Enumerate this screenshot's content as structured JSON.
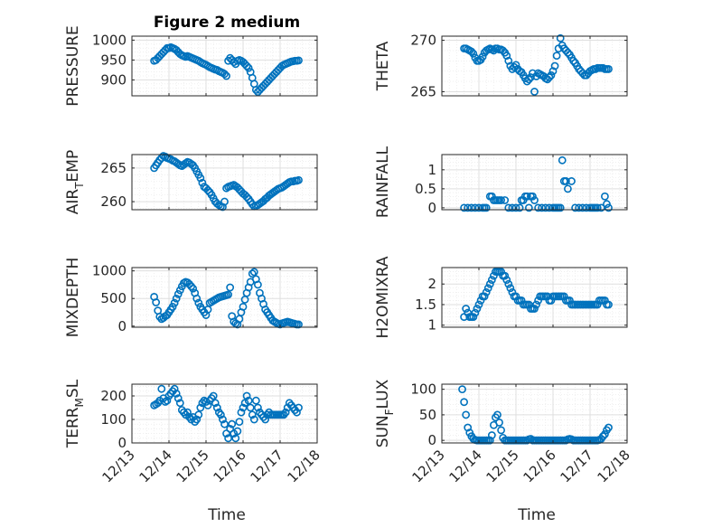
{
  "figure": {
    "title": "Figure 2 medium",
    "xlabel": "Time",
    "marker_color": "#0072bd"
  },
  "x_ticks": [
    "12/13",
    "12/14",
    "12/15",
    "12/16",
    "12/17",
    "12/18"
  ],
  "chart_data": [
    {
      "type": "scatter",
      "ylabel_parts": [
        "PRESSURE"
      ],
      "ylim": [
        860,
        1010
      ],
      "yticks": [
        900,
        950,
        1000
      ],
      "grid": true,
      "x": [
        13.6,
        13.65,
        13.7,
        13.75,
        13.8,
        13.85,
        13.9,
        13.95,
        14.0,
        14.05,
        14.1,
        14.15,
        14.2,
        14.25,
        14.3,
        14.35,
        14.4,
        14.45,
        14.5,
        14.55,
        14.6,
        14.65,
        14.7,
        14.75,
        14.8,
        14.85,
        14.9,
        14.95,
        15.0,
        15.05,
        15.1,
        15.15,
        15.2,
        15.25,
        15.3,
        15.35,
        15.4,
        15.45,
        15.5,
        15.55,
        15.6,
        15.65,
        15.7,
        15.75,
        15.8,
        15.85,
        15.9,
        15.95,
        16.0,
        16.05,
        16.1,
        16.15,
        16.2,
        16.25,
        16.3,
        16.35,
        16.4,
        16.45,
        16.5,
        16.55,
        16.6,
        16.65,
        16.7,
        16.75,
        16.8,
        16.85,
        16.9,
        16.95,
        17.0,
        17.05,
        17.1,
        17.15,
        17.2,
        17.25,
        17.3,
        17.35,
        17.4,
        17.45,
        17.5
      ],
      "y": [
        948,
        950,
        955,
        960,
        965,
        970,
        975,
        980,
        980,
        982,
        980,
        978,
        975,
        970,
        965,
        962,
        960,
        958,
        960,
        958,
        956,
        954,
        952,
        950,
        948,
        945,
        942,
        940,
        938,
        935,
        932,
        930,
        928,
        926,
        925,
        922,
        920,
        918,
        915,
        910,
        948,
        955,
        950,
        945,
        940,
        948,
        950,
        948,
        945,
        940,
        935,
        930,
        920,
        905,
        890,
        875,
        870,
        875,
        880,
        885,
        890,
        895,
        900,
        905,
        910,
        915,
        920,
        925,
        930,
        935,
        938,
        940,
        942,
        944,
        946,
        947,
        948,
        948,
        949
      ]
    },
    {
      "type": "scatter",
      "ylabel_parts": [
        "THETA"
      ],
      "ylim": [
        264.6,
        270.4
      ],
      "yticks": [
        265,
        270
      ],
      "grid": true,
      "x": [
        13.6,
        13.65,
        13.7,
        13.75,
        13.8,
        13.85,
        13.9,
        13.95,
        14.0,
        14.05,
        14.1,
        14.15,
        14.2,
        14.25,
        14.3,
        14.35,
        14.4,
        14.45,
        14.5,
        14.55,
        14.6,
        14.65,
        14.7,
        14.75,
        14.8,
        14.85,
        14.9,
        14.95,
        15.0,
        15.05,
        15.1,
        15.15,
        15.2,
        15.25,
        15.3,
        15.35,
        15.4,
        15.45,
        15.5,
        15.55,
        15.6,
        15.65,
        15.7,
        15.75,
        15.8,
        15.85,
        15.9,
        15.95,
        16.0,
        16.05,
        16.1,
        16.15,
        16.2,
        16.25,
        16.3,
        16.35,
        16.4,
        16.45,
        16.5,
        16.55,
        16.6,
        16.65,
        16.7,
        16.75,
        16.8,
        16.85,
        16.9,
        16.95,
        17.0,
        17.05,
        17.1,
        17.15,
        17.2,
        17.25,
        17.3,
        17.35,
        17.4,
        17.45,
        17.5
      ],
      "y": [
        269.2,
        269.2,
        269.1,
        269.0,
        268.9,
        268.7,
        268.3,
        268.0,
        268.0,
        268.1,
        268.4,
        268.8,
        269.0,
        269.1,
        269.2,
        269.1,
        269.0,
        269.2,
        269.2,
        269.1,
        269.1,
        269.0,
        268.8,
        268.5,
        268.0,
        267.5,
        267.2,
        267.4,
        267.6,
        267.2,
        267.0,
        266.9,
        266.6,
        266.3,
        266.0,
        266.2,
        266.4,
        266.8,
        265.0,
        266.5,
        266.8,
        266.7,
        266.6,
        266.5,
        266.3,
        266.2,
        266.4,
        266.6,
        267.0,
        267.5,
        268.5,
        269.2,
        270.2,
        269.5,
        269.2,
        269.0,
        268.8,
        268.6,
        268.3,
        268.0,
        267.8,
        267.5,
        267.2,
        267.0,
        266.8,
        266.6,
        266.6,
        266.8,
        267.0,
        267.1,
        267.2,
        267.2,
        267.3,
        267.3,
        267.3,
        267.3,
        267.2,
        267.2,
        267.2
      ]
    },
    {
      "type": "scatter",
      "ylabel_parts": [
        "AIR",
        "T",
        "EMP"
      ],
      "ylim": [
        258.8,
        267
      ],
      "yticks": [
        260,
        265
      ],
      "grid": true,
      "x": [
        13.6,
        13.65,
        13.7,
        13.75,
        13.8,
        13.85,
        13.9,
        13.95,
        14.0,
        14.05,
        14.1,
        14.15,
        14.2,
        14.25,
        14.3,
        14.35,
        14.4,
        14.45,
        14.5,
        14.55,
        14.6,
        14.65,
        14.7,
        14.75,
        14.8,
        14.85,
        14.9,
        14.95,
        15.0,
        15.05,
        15.1,
        15.15,
        15.2,
        15.25,
        15.3,
        15.35,
        15.4,
        15.45,
        15.5,
        15.55,
        15.6,
        15.65,
        15.7,
        15.75,
        15.8,
        15.85,
        15.9,
        15.95,
        16.0,
        16.05,
        16.1,
        16.15,
        16.2,
        16.25,
        16.3,
        16.35,
        16.4,
        16.45,
        16.5,
        16.55,
        16.6,
        16.65,
        16.7,
        16.75,
        16.8,
        16.85,
        16.9,
        16.95,
        17.0,
        17.05,
        17.1,
        17.15,
        17.2,
        17.25,
        17.3,
        17.35,
        17.4,
        17.45,
        17.5
      ],
      "y": [
        265.0,
        265.4,
        265.8,
        266.2,
        266.5,
        266.8,
        266.7,
        266.5,
        266.4,
        266.3,
        266.1,
        266.0,
        265.8,
        265.6,
        265.4,
        265.3,
        265.5,
        265.7,
        265.9,
        265.8,
        265.6,
        265.4,
        265.0,
        264.5,
        264.0,
        263.5,
        262.8,
        262.2,
        262.0,
        261.7,
        261.4,
        261.0,
        260.5,
        260.0,
        259.7,
        259.5,
        259.3,
        259.2,
        260.0,
        262.0,
        262.2,
        262.3,
        262.4,
        262.5,
        262.3,
        262.1,
        261.8,
        261.5,
        261.2,
        261.0,
        260.7,
        260.4,
        260.0,
        259.6,
        259.3,
        259.4,
        259.5,
        259.7,
        259.9,
        260.1,
        260.4,
        260.6,
        260.9,
        261.1,
        261.3,
        261.5,
        261.7,
        261.9,
        262.0,
        262.1,
        262.3,
        262.5,
        262.7,
        262.9,
        263.0,
        263.0,
        263.1,
        263.1,
        263.2
      ]
    },
    {
      "type": "scatter",
      "ylabel_parts": [
        "RAINFALL"
      ],
      "ylim": [
        -0.05,
        1.4
      ],
      "yticks": [
        0,
        0.5,
        1
      ],
      "ytick_labels": [
        "0",
        "0.5",
        "1"
      ],
      "grid": true,
      "x": [
        13.6,
        13.7,
        13.8,
        13.9,
        14.0,
        14.1,
        14.15,
        14.2,
        14.3,
        14.35,
        14.4,
        14.45,
        14.5,
        14.55,
        14.6,
        14.7,
        14.8,
        14.9,
        15.0,
        15.1,
        15.15,
        15.2,
        15.25,
        15.3,
        15.35,
        15.4,
        15.45,
        15.5,
        15.6,
        15.7,
        15.8,
        15.9,
        16.0,
        16.05,
        16.1,
        16.15,
        16.2,
        16.25,
        16.3,
        16.35,
        16.4,
        16.5,
        16.6,
        16.7,
        16.8,
        16.9,
        17.0,
        17.05,
        17.1,
        17.15,
        17.2,
        17.3,
        17.4,
        17.45,
        17.5
      ],
      "y": [
        0,
        0,
        0,
        0,
        0,
        0,
        0,
        0,
        0.3,
        0.3,
        0.2,
        0.2,
        0.2,
        0.2,
        0.2,
        0.2,
        0,
        0,
        0,
        0,
        0.2,
        0.2,
        0.3,
        0.3,
        0,
        0.3,
        0.3,
        0.2,
        0,
        0,
        0,
        0,
        0,
        0,
        0,
        0,
        0,
        1.25,
        0.7,
        0.7,
        0.5,
        0.7,
        0,
        0,
        0,
        0,
        0,
        0,
        0,
        0,
        0,
        0,
        0.3,
        0.1,
        0
      ]
    },
    {
      "type": "scatter",
      "ylabel_parts": [
        "MIXDEPTH"
      ],
      "ylim": [
        -20,
        1060
      ],
      "yticks": [
        0,
        500,
        1000
      ],
      "grid": true,
      "x": [
        13.6,
        13.65,
        13.7,
        13.75,
        13.8,
        13.85,
        13.9,
        13.95,
        14.0,
        14.05,
        14.1,
        14.15,
        14.2,
        14.25,
        14.3,
        14.35,
        14.4,
        14.45,
        14.5,
        14.55,
        14.6,
        14.65,
        14.7,
        14.75,
        14.8,
        14.85,
        14.9,
        14.95,
        15.0,
        15.05,
        15.1,
        15.15,
        15.2,
        15.25,
        15.3,
        15.35,
        15.4,
        15.45,
        15.5,
        15.55,
        15.6,
        15.65,
        15.7,
        15.75,
        15.8,
        15.85,
        15.9,
        15.95,
        16.0,
        16.05,
        16.1,
        16.15,
        16.2,
        16.25,
        16.3,
        16.35,
        16.4,
        16.45,
        16.5,
        16.55,
        16.6,
        16.65,
        16.7,
        16.75,
        16.8,
        16.85,
        16.9,
        16.95,
        17.0,
        17.05,
        17.1,
        17.15,
        17.2,
        17.25,
        17.3,
        17.35,
        17.4,
        17.45,
        17.5
      ],
      "y": [
        530,
        430,
        280,
        170,
        130,
        150,
        180,
        200,
        250,
        300,
        350,
        420,
        500,
        580,
        650,
        720,
        780,
        800,
        790,
        760,
        720,
        680,
        600,
        500,
        420,
        350,
        300,
        250,
        200,
        300,
        420,
        440,
        460,
        480,
        500,
        520,
        530,
        540,
        550,
        560,
        570,
        700,
        180,
        80,
        50,
        30,
        130,
        250,
        350,
        480,
        600,
        700,
        800,
        950,
        980,
        850,
        750,
        600,
        500,
        400,
        300,
        250,
        200,
        150,
        100,
        80,
        60,
        40,
        30,
        50,
        60,
        70,
        80,
        70,
        60,
        50,
        40,
        30,
        30
      ]
    },
    {
      "type": "scatter",
      "ylabel_parts": [
        "H2OMIXRA"
      ],
      "ylim": [
        0.95,
        2.4
      ],
      "yticks": [
        1,
        1.5,
        2
      ],
      "ytick_labels": [
        "1",
        "1.5",
        "2"
      ],
      "grid": true,
      "x": [
        13.6,
        13.65,
        13.7,
        13.75,
        13.8,
        13.85,
        13.9,
        13.95,
        14.0,
        14.05,
        14.1,
        14.15,
        14.2,
        14.25,
        14.3,
        14.35,
        14.4,
        14.45,
        14.5,
        14.55,
        14.6,
        14.65,
        14.7,
        14.75,
        14.8,
        14.85,
        14.9,
        14.95,
        15.0,
        15.05,
        15.1,
        15.15,
        15.2,
        15.25,
        15.3,
        15.35,
        15.4,
        15.45,
        15.5,
        15.55,
        15.6,
        15.65,
        15.7,
        15.75,
        15.8,
        15.85,
        15.9,
        15.95,
        16.0,
        16.05,
        16.1,
        16.15,
        16.2,
        16.25,
        16.3,
        16.35,
        16.4,
        16.45,
        16.5,
        16.55,
        16.6,
        16.65,
        16.7,
        16.75,
        16.8,
        16.85,
        16.9,
        16.95,
        17.0,
        17.05,
        17.1,
        17.15,
        17.2,
        17.25,
        17.3,
        17.35,
        17.4,
        17.45,
        17.5
      ],
      "y": [
        1.2,
        1.4,
        1.3,
        1.2,
        1.2,
        1.2,
        1.3,
        1.4,
        1.5,
        1.6,
        1.7,
        1.7,
        1.8,
        1.9,
        2.0,
        2.1,
        2.2,
        2.3,
        2.3,
        2.3,
        2.3,
        2.2,
        2.2,
        2.1,
        2.0,
        1.9,
        1.8,
        1.7,
        1.7,
        1.6,
        1.6,
        1.6,
        1.5,
        1.5,
        1.5,
        1.5,
        1.4,
        1.4,
        1.4,
        1.5,
        1.6,
        1.7,
        1.7,
        1.7,
        1.7,
        1.7,
        1.6,
        1.6,
        1.7,
        1.7,
        1.7,
        1.7,
        1.7,
        1.7,
        1.7,
        1.6,
        1.6,
        1.6,
        1.5,
        1.5,
        1.5,
        1.5,
        1.5,
        1.5,
        1.5,
        1.5,
        1.5,
        1.5,
        1.5,
        1.5,
        1.5,
        1.5,
        1.5,
        1.6,
        1.6,
        1.6,
        1.6,
        1.5,
        1.5
      ]
    },
    {
      "type": "scatter",
      "ylabel_parts": [
        "TERR",
        "M",
        "SL"
      ],
      "ylim": [
        0,
        250
      ],
      "yticks": [
        0,
        100,
        200
      ],
      "grid": true,
      "x": [
        13.6,
        13.65,
        13.7,
        13.75,
        13.8,
        13.85,
        13.9,
        13.95,
        14.0,
        14.05,
        14.1,
        14.15,
        14.2,
        14.25,
        14.3,
        14.35,
        14.4,
        14.45,
        14.5,
        14.55,
        14.6,
        14.65,
        14.7,
        14.75,
        14.8,
        14.85,
        14.9,
        14.95,
        15.0,
        15.05,
        15.1,
        15.15,
        15.2,
        15.25,
        15.3,
        15.35,
        15.4,
        15.45,
        15.5,
        15.55,
        15.6,
        15.65,
        15.7,
        15.75,
        15.8,
        15.85,
        15.9,
        15.95,
        16.0,
        16.05,
        16.1,
        16.15,
        16.2,
        16.25,
        16.3,
        16.35,
        16.4,
        16.45,
        16.5,
        16.55,
        16.6,
        16.65,
        16.7,
        16.75,
        16.8,
        16.85,
        16.9,
        16.95,
        17.0,
        17.05,
        17.1,
        17.15,
        17.2,
        17.25,
        17.3,
        17.35,
        17.4,
        17.45,
        17.5
      ],
      "y": [
        160,
        165,
        170,
        180,
        230,
        190,
        175,
        180,
        200,
        210,
        220,
        230,
        210,
        190,
        170,
        140,
        130,
        120,
        130,
        110,
        100,
        110,
        90,
        100,
        120,
        150,
        170,
        180,
        175,
        160,
        180,
        190,
        200,
        170,
        150,
        130,
        120,
        100,
        80,
        40,
        20,
        60,
        80,
        40,
        20,
        50,
        90,
        130,
        150,
        170,
        200,
        180,
        150,
        120,
        100,
        180,
        150,
        130,
        120,
        110,
        100,
        120,
        130,
        120,
        120,
        120,
        120,
        120,
        120,
        120,
        120,
        130,
        150,
        170,
        160,
        150,
        140,
        130,
        150
      ]
    },
    {
      "type": "scatter",
      "ylabel_parts": [
        "SUN",
        "F",
        "LUX"
      ],
      "ylim": [
        -5,
        110
      ],
      "yticks": [
        0,
        50,
        100
      ],
      "grid": true,
      "x": [
        13.55,
        13.6,
        13.65,
        13.7,
        13.75,
        13.8,
        13.85,
        13.9,
        13.95,
        14.0,
        14.05,
        14.1,
        14.15,
        14.2,
        14.25,
        14.3,
        14.35,
        14.4,
        14.45,
        14.5,
        14.55,
        14.6,
        14.65,
        14.7,
        14.75,
        14.8,
        14.85,
        14.9,
        14.95,
        15.0,
        15.05,
        15.1,
        15.15,
        15.2,
        15.25,
        15.3,
        15.35,
        15.4,
        15.45,
        15.5,
        15.55,
        15.6,
        15.65,
        15.7,
        15.75,
        15.8,
        15.85,
        15.9,
        15.95,
        16.0,
        16.05,
        16.1,
        16.15,
        16.2,
        16.25,
        16.3,
        16.35,
        16.4,
        16.45,
        16.5,
        16.55,
        16.6,
        16.65,
        16.7,
        16.75,
        16.8,
        16.85,
        16.9,
        16.95,
        17.0,
        17.05,
        17.1,
        17.15,
        17.2,
        17.25,
        17.3,
        17.35,
        17.4,
        17.45,
        17.5
      ],
      "y": [
        100,
        75,
        50,
        25,
        15,
        8,
        3,
        1,
        0,
        0,
        0,
        0,
        0,
        0,
        0,
        0,
        10,
        30,
        45,
        50,
        35,
        20,
        5,
        0,
        0,
        0,
        0,
        0,
        0,
        0,
        0,
        0,
        0,
        0,
        0,
        0,
        2,
        3,
        0,
        0,
        0,
        0,
        0,
        0,
        0,
        0,
        0,
        0,
        0,
        0,
        0,
        0,
        0,
        0,
        0,
        0,
        0,
        2,
        3,
        2,
        0,
        0,
        0,
        0,
        0,
        0,
        0,
        0,
        0,
        0,
        0,
        0,
        0,
        0,
        1,
        3,
        8,
        12,
        20,
        25
      ]
    }
  ]
}
